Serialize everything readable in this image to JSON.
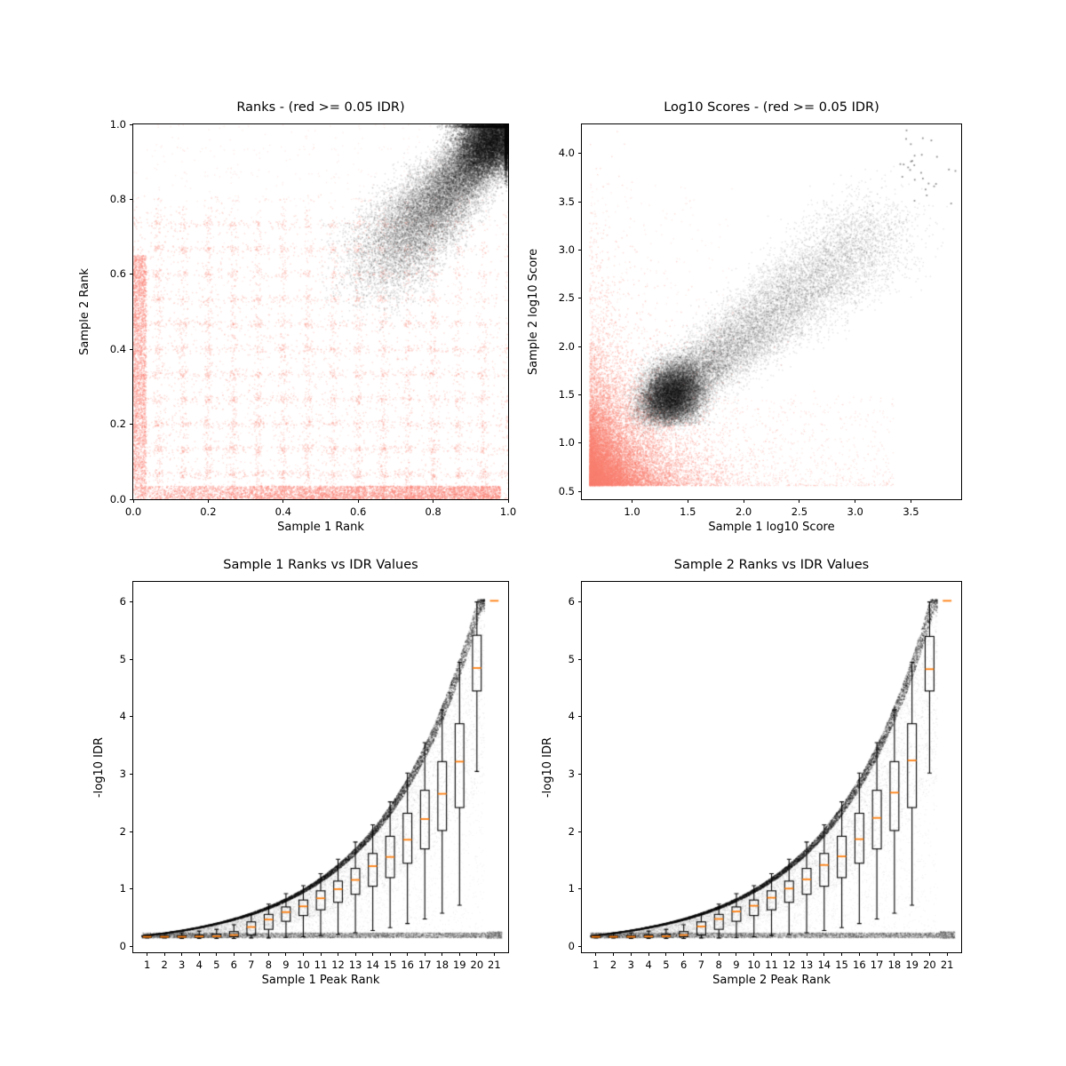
{
  "colors": {
    "salmon": "#FA8072",
    "black": "#000000",
    "median_orange": "#ff7f0e",
    "axis": "#000000",
    "background": "#ffffff"
  },
  "chart_data": [
    {
      "id": "ranks-scatter",
      "type": "scatter",
      "title": "Ranks - (red >= 0.05 IDR)",
      "xlabel": "Sample 1 Rank",
      "ylabel": "Sample 2 Rank",
      "xlim": [
        0,
        1
      ],
      "ylim": [
        0,
        1
      ],
      "xticks": [
        0,
        0.2,
        0.4,
        0.6,
        0.8,
        1.0
      ],
      "xtick_labels": [
        "0.0",
        "0.2",
        "0.4",
        "0.6",
        "0.8",
        "1.0"
      ],
      "yticks": [
        0,
        0.2,
        0.4,
        0.6,
        0.8,
        1.0
      ],
      "ytick_labels": [
        "0.0",
        "0.2",
        "0.4",
        "0.6",
        "0.8",
        "1.0"
      ],
      "series": [
        {
          "name": "IDR >= 0.05",
          "color": "salmon"
        },
        {
          "name": "IDR < 0.05",
          "color": "black"
        }
      ],
      "seed": 11,
      "clusters": [
        {
          "kind": "power",
          "n": 9000,
          "xmin": 0,
          "xmax": 1,
          "xpow": 1.0,
          "ymin": 0,
          "ymax": 0.78,
          "ypow": 1.15,
          "quant": {
            "step": 0.0667,
            "prob": 0.55,
            "jit": 0.006
          },
          "fade": 0.75,
          "color": "salmon",
          "alpha": 0.3,
          "size": 1.4
        },
        {
          "kind": "power",
          "n": 4500,
          "xmin": 0,
          "xmax": 0.98,
          "xpow": 0.7,
          "ymin": 0,
          "ymax": 0.035,
          "ypow": 1.0,
          "color": "salmon",
          "alpha": 0.4,
          "size": 1.4
        },
        {
          "kind": "power",
          "n": 2500,
          "xmin": 0,
          "xmax": 0.035,
          "xpow": 1.0,
          "ymin": 0,
          "ymax": 0.65,
          "ypow": 0.8,
          "color": "salmon",
          "alpha": 0.4,
          "size": 1.4
        },
        {
          "kind": "power",
          "n": 2500,
          "xmin": 0,
          "xmax": 1,
          "xpow": 0.9,
          "ymin": 0,
          "ymax": 1,
          "ypow": 1.3,
          "quant": {
            "step": 0.0667,
            "prob": 0.4,
            "jit": 0.006
          },
          "fade": 0.55,
          "color": "salmon",
          "alpha": 0.18,
          "size": 1.3
        },
        {
          "kind": "comet",
          "n": 22000,
          "x0": 0.625,
          "y0": 0.59,
          "dx": 0.37,
          "dy": 0.405,
          "tpow": 0.65,
          "s0": 0.068,
          "s1": 0.026,
          "cmax": [
            0.999,
            0.999
          ],
          "cmin": [
            0.5,
            0.45
          ],
          "color": "black",
          "alpha": 0.13,
          "size": 1.5
        },
        {
          "kind": "gauss",
          "n": 9000,
          "cx": 0.955,
          "cy": 0.955,
          "sx": 0.05,
          "sy": 0.045,
          "cmax": [
            0.999,
            0.999
          ],
          "cmin": [
            0.6,
            0.55
          ],
          "color": "black",
          "alpha": 0.18,
          "size": 1.5
        }
      ]
    },
    {
      "id": "log10-scores-scatter",
      "type": "scatter",
      "title": "Log10 Scores - (red >= 0.05 IDR)",
      "xlabel": "Sample 1 log10 Score",
      "ylabel": "Sample 2 log10 Score",
      "xlim": [
        0.55,
        3.95
      ],
      "ylim": [
        0.42,
        4.3
      ],
      "xticks": [
        1.0,
        1.5,
        2.0,
        2.5,
        3.0,
        3.5
      ],
      "xtick_labels": [
        "1.0",
        "1.5",
        "2.0",
        "2.5",
        "3.0",
        "3.5"
      ],
      "yticks": [
        0.5,
        1.0,
        1.5,
        2.0,
        2.5,
        3.0,
        3.5,
        4.0
      ],
      "ytick_labels": [
        "0.5",
        "1.0",
        "1.5",
        "2.0",
        "2.5",
        "3.0",
        "3.5",
        "4.0"
      ],
      "series": [
        {
          "name": "IDR >= 0.05",
          "color": "salmon"
        },
        {
          "name": "IDR < 0.05",
          "color": "black"
        }
      ],
      "seed": 22,
      "clusters": [
        {
          "kind": "expcorner",
          "n": 12000,
          "x0": 0.62,
          "y0": 0.56,
          "sx": 0.28,
          "sy": 0.33,
          "color": "salmon",
          "alpha": 0.35,
          "size": 1.4
        },
        {
          "kind": "expcorner",
          "n": 5000,
          "x0": 0.62,
          "y0": 0.56,
          "sx": 0.16,
          "sy": 0.5,
          "color": "salmon",
          "alpha": 0.3,
          "size": 1.4
        },
        {
          "kind": "power",
          "n": 1800,
          "xmin": 0.62,
          "xmax": 3.35,
          "xpow": 1.6,
          "ymin": 0.56,
          "ymax": 1.5,
          "ypow": 2.2,
          "color": "salmon",
          "alpha": 0.22,
          "size": 1.3
        },
        {
          "kind": "power",
          "n": 700,
          "xmin": 0.62,
          "xmax": 1.9,
          "xpow": 1.8,
          "ymin": 0.56,
          "ymax": 3.7,
          "ypow": 1.6,
          "color": "salmon",
          "alpha": 0.18,
          "size": 1.3
        },
        {
          "kind": "comet",
          "n": 18000,
          "x0": 1.22,
          "y0": 1.38,
          "dx": 2.0,
          "dy": 1.85,
          "tpow": 1.9,
          "s0": 0.11,
          "s1": 0.25,
          "cmin": [
            0.6,
            0.5
          ],
          "color": "black",
          "alpha": 0.11,
          "size": 1.5
        },
        {
          "kind": "gauss",
          "n": 10000,
          "cx": 1.38,
          "cy": 1.52,
          "sx": 0.13,
          "sy": 0.16,
          "cmin": [
            0.9,
            1.18
          ],
          "color": "black",
          "alpha": 0.13,
          "size": 1.5
        },
        {
          "kind": "gauss",
          "n": 28,
          "cx": 3.6,
          "cy": 3.85,
          "sx": 0.14,
          "sy": 0.18,
          "color": "#333333",
          "alpha": 0.55,
          "size": 1.8
        }
      ]
    },
    {
      "id": "sample1-rank-vs-idr",
      "type": "scatter-box",
      "title": "Sample 1 Ranks vs IDR Values",
      "xlabel": "Sample 1 Peak Rank",
      "ylabel": "-log10 IDR",
      "xlim": [
        0.2,
        21.8
      ],
      "ylim": [
        -0.1,
        6.35
      ],
      "xticks": [
        1,
        2,
        3,
        4,
        5,
        6,
        7,
        8,
        9,
        10,
        11,
        12,
        13,
        14,
        15,
        16,
        17,
        18,
        19,
        20,
        21
      ],
      "xtick_labels": [
        "1",
        "2",
        "3",
        "4",
        "5",
        "6",
        "7",
        "8",
        "9",
        "10",
        "11",
        "12",
        "13",
        "14",
        "15",
        "16",
        "17",
        "18",
        "19",
        "20",
        "21"
      ],
      "yticks": [
        0,
        1,
        2,
        3,
        4,
        5,
        6
      ],
      "ytick_labels": [
        "0",
        "1",
        "2",
        "3",
        "4",
        "5",
        "6"
      ],
      "seed": 33,
      "box_width": 0.5,
      "boxes": [
        [
          1,
          0.15,
          0.16,
          0.17,
          0.18,
          0.2
        ],
        [
          2,
          0.15,
          0.16,
          0.17,
          0.185,
          0.22
        ],
        [
          3,
          0.14,
          0.16,
          0.17,
          0.19,
          0.24
        ],
        [
          4,
          0.14,
          0.16,
          0.175,
          0.2,
          0.27
        ],
        [
          5,
          0.14,
          0.165,
          0.18,
          0.215,
          0.3
        ],
        [
          6,
          0.14,
          0.17,
          0.2,
          0.26,
          0.38
        ],
        [
          7,
          0.15,
          0.2,
          0.34,
          0.43,
          0.56
        ],
        [
          8,
          0.15,
          0.3,
          0.47,
          0.56,
          0.74
        ],
        [
          9,
          0.16,
          0.44,
          0.6,
          0.69,
          0.92
        ],
        [
          10,
          0.17,
          0.54,
          0.7,
          0.81,
          1.06
        ],
        [
          11,
          0.19,
          0.64,
          0.84,
          0.97,
          1.27
        ],
        [
          12,
          0.21,
          0.77,
          1.0,
          1.14,
          1.52
        ],
        [
          13,
          0.24,
          0.91,
          1.16,
          1.36,
          1.82
        ],
        [
          14,
          0.28,
          1.05,
          1.4,
          1.62,
          2.12
        ],
        [
          15,
          0.33,
          1.2,
          1.56,
          1.92,
          2.52
        ],
        [
          16,
          0.4,
          1.45,
          1.86,
          2.32,
          3.02
        ],
        [
          17,
          0.48,
          1.7,
          2.22,
          2.72,
          3.55
        ],
        [
          18,
          0.58,
          2.02,
          2.66,
          3.22,
          4.12
        ],
        [
          19,
          0.72,
          2.42,
          3.22,
          3.88,
          4.95
        ],
        [
          20,
          3.05,
          4.45,
          4.85,
          5.42,
          6.0
        ],
        [
          21,
          null,
          null,
          6.02,
          null,
          null
        ]
      ],
      "clusters": [
        {
          "kind": "curve",
          "n": 9000,
          "xmin": 0.7,
          "xmax": 20.45,
          "a": 0.2,
          "k": 0.179,
          "x1": 1,
          "amp": 0.07,
          "p": 1,
          "ycap": 6.04,
          "color": "black",
          "alpha": 0.3,
          "size": 1.25
        },
        {
          "kind": "curve",
          "n": 6500,
          "xmin": 0.7,
          "xmax": 20.45,
          "a": 0.2,
          "k": 0.179,
          "x1": 1,
          "amp": 0.55,
          "p": 1.6,
          "ycap": 6.04,
          "color": "black",
          "alpha": 0.08,
          "size": 1.25
        },
        {
          "kind": "curve",
          "n": 5000,
          "xmin": 0.7,
          "xmax": 20.45,
          "a": 0.2,
          "k": 0.179,
          "x1": 1,
          "amp": 1.0,
          "p": 1.0,
          "ycap": 6.04,
          "color": "black",
          "alpha": 0.05,
          "size": 1.25
        },
        {
          "kind": "hband",
          "n": 5200,
          "xmin": 0.7,
          "xmax": 20.6,
          "y0": 0.195,
          "amp": 0.045,
          "color": "black",
          "alpha": 0.14,
          "size": 1.25
        },
        {
          "kind": "hband",
          "n": 450,
          "xmin": 20.6,
          "xmax": 21.45,
          "y0": 0.2,
          "amp": 0.06,
          "color": "black",
          "alpha": 0.12,
          "size": 1.25
        }
      ]
    },
    {
      "id": "sample2-rank-vs-idr",
      "type": "scatter-box",
      "title": "Sample 2 Ranks vs IDR Values",
      "xlabel": "Sample 2 Peak Rank",
      "ylabel": "-log10 IDR",
      "xlim": [
        0.2,
        21.8
      ],
      "ylim": [
        -0.1,
        6.35
      ],
      "xticks": [
        1,
        2,
        3,
        4,
        5,
        6,
        7,
        8,
        9,
        10,
        11,
        12,
        13,
        14,
        15,
        16,
        17,
        18,
        19,
        20,
        21
      ],
      "xtick_labels": [
        "1",
        "2",
        "3",
        "4",
        "5",
        "6",
        "7",
        "8",
        "9",
        "10",
        "11",
        "12",
        "13",
        "14",
        "15",
        "16",
        "17",
        "18",
        "19",
        "20",
        "21"
      ],
      "yticks": [
        0,
        1,
        2,
        3,
        4,
        5,
        6
      ],
      "ytick_labels": [
        "0",
        "1",
        "2",
        "3",
        "4",
        "5",
        "6"
      ],
      "seed": 44,
      "box_width": 0.5,
      "boxes": [
        [
          1,
          0.15,
          0.16,
          0.17,
          0.18,
          0.2
        ],
        [
          2,
          0.15,
          0.16,
          0.17,
          0.185,
          0.22
        ],
        [
          3,
          0.14,
          0.16,
          0.17,
          0.19,
          0.24
        ],
        [
          4,
          0.14,
          0.16,
          0.175,
          0.2,
          0.27
        ],
        [
          5,
          0.14,
          0.165,
          0.18,
          0.215,
          0.3
        ],
        [
          6,
          0.14,
          0.17,
          0.2,
          0.26,
          0.38
        ],
        [
          7,
          0.15,
          0.2,
          0.35,
          0.43,
          0.56
        ],
        [
          8,
          0.15,
          0.3,
          0.48,
          0.56,
          0.74
        ],
        [
          9,
          0.16,
          0.44,
          0.61,
          0.69,
          0.92
        ],
        [
          10,
          0.17,
          0.54,
          0.71,
          0.81,
          1.06
        ],
        [
          11,
          0.19,
          0.64,
          0.85,
          0.97,
          1.27
        ],
        [
          12,
          0.21,
          0.77,
          1.01,
          1.14,
          1.52
        ],
        [
          13,
          0.24,
          0.91,
          1.17,
          1.36,
          1.82
        ],
        [
          14,
          0.28,
          1.05,
          1.42,
          1.62,
          2.12
        ],
        [
          15,
          0.33,
          1.2,
          1.57,
          1.92,
          2.52
        ],
        [
          16,
          0.4,
          1.45,
          1.87,
          2.32,
          3.02
        ],
        [
          17,
          0.48,
          1.7,
          2.24,
          2.72,
          3.55
        ],
        [
          18,
          0.58,
          2.02,
          2.68,
          3.22,
          4.12
        ],
        [
          19,
          0.72,
          2.42,
          3.24,
          3.88,
          4.95
        ],
        [
          20,
          3.02,
          4.45,
          4.83,
          5.4,
          6.0
        ],
        [
          21,
          null,
          null,
          6.02,
          null,
          null
        ]
      ],
      "clusters": [
        {
          "kind": "curve",
          "n": 9000,
          "xmin": 0.7,
          "xmax": 20.45,
          "a": 0.2,
          "k": 0.179,
          "x1": 1,
          "amp": 0.07,
          "p": 1,
          "ycap": 6.04,
          "color": "black",
          "alpha": 0.3,
          "size": 1.25
        },
        {
          "kind": "curve",
          "n": 6500,
          "xmin": 0.7,
          "xmax": 20.45,
          "a": 0.2,
          "k": 0.179,
          "x1": 1,
          "amp": 0.55,
          "p": 1.6,
          "ycap": 6.04,
          "color": "black",
          "alpha": 0.08,
          "size": 1.25
        },
        {
          "kind": "curve",
          "n": 5000,
          "xmin": 0.7,
          "xmax": 20.45,
          "a": 0.2,
          "k": 0.179,
          "x1": 1,
          "amp": 1.0,
          "p": 1.0,
          "ycap": 6.04,
          "color": "black",
          "alpha": 0.05,
          "size": 1.25
        },
        {
          "kind": "hband",
          "n": 5200,
          "xmin": 0.7,
          "xmax": 20.6,
          "y0": 0.195,
          "amp": 0.045,
          "color": "black",
          "alpha": 0.14,
          "size": 1.25
        },
        {
          "kind": "hband",
          "n": 450,
          "xmin": 20.6,
          "xmax": 21.45,
          "y0": 0.2,
          "amp": 0.06,
          "color": "black",
          "alpha": 0.12,
          "size": 1.25
        }
      ]
    }
  ]
}
